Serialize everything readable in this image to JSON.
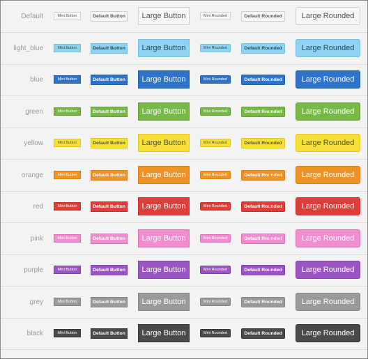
{
  "labels": {
    "mini": "Mini Button",
    "default": "Default Button",
    "large": "Large Button",
    "mini_rounded": "Mini Rounded",
    "default_rounded": "Default Rounded",
    "large_rounded": "Large Rounded"
  },
  "rows": [
    {
      "name": "Default",
      "bg": "#f7f7f7",
      "border": "#cfcfcf",
      "fg": "#555555"
    },
    {
      "name": "light_blue",
      "bg": "#8fd3f0",
      "border": "#6dbfe3",
      "fg": "#2a4a5a"
    },
    {
      "name": "blue",
      "bg": "#2f72c9",
      "border": "#245fae",
      "fg": "#ffffff"
    },
    {
      "name": "green",
      "bg": "#77b846",
      "border": "#62a235",
      "fg": "#ffffff"
    },
    {
      "name": "yellow",
      "bg": "#f6e038",
      "border": "#e0c520",
      "fg": "#555533"
    },
    {
      "name": "orange",
      "bg": "#ef9325",
      "border": "#d87f16",
      "fg": "#ffffff"
    },
    {
      "name": "red",
      "bg": "#df3d39",
      "border": "#c42f2b",
      "fg": "#ffffff"
    },
    {
      "name": "pink",
      "bg": "#f18ccf",
      "border": "#dc72ba",
      "fg": "#ffffff"
    },
    {
      "name": "purple",
      "bg": "#9a55c3",
      "border": "#8342ab",
      "fg": "#ffffff"
    },
    {
      "name": "grey",
      "bg": "#9a9a9a",
      "border": "#858585",
      "fg": "#ffffff"
    },
    {
      "name": "black",
      "bg": "#4a4a4a",
      "border": "#333333",
      "fg": "#ffffff"
    }
  ]
}
